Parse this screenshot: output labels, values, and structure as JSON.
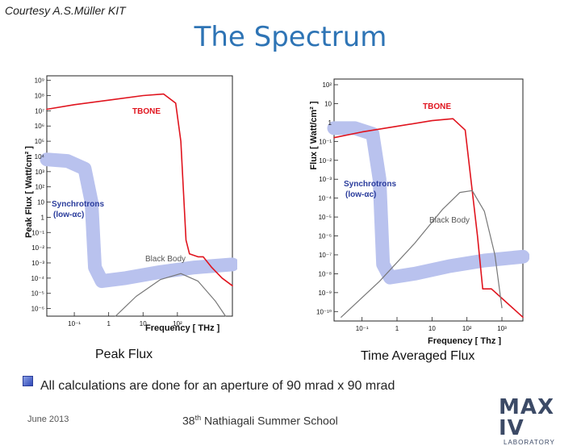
{
  "slide": {
    "credit": "Courtesy A.S.Müller KIT",
    "title": "The Spectrum",
    "bullet": "All calculations are done for an aperture of 90 mrad x 90 mrad",
    "date": "June 2013",
    "school_ordinal": "38",
    "school_suffix": "th",
    "school_name": " Nathiagali Summer School",
    "logo": "MAX IV",
    "logo_sub": "LABORATORY"
  },
  "colors": {
    "title": "#2e74b5",
    "tbone": "#e0141e",
    "synchrotron_band": "#b9c2ee",
    "black_body": "#777777"
  },
  "chart_data": [
    {
      "type": "line",
      "caption": "Peak Flux",
      "xlabel": "Frequency [ THz ]",
      "ylabel": "Peak Flux [ Watt/cm² ]",
      "xscale": "log",
      "yscale": "log",
      "xlim_exp": [
        -1.8,
        3.6
      ],
      "ylim_exp": [
        -6.5,
        9.3
      ],
      "x_ticks": [
        "10⁻¹",
        "1",
        "10",
        "10²"
      ],
      "x_tick_exp": [
        -1,
        0,
        1,
        2
      ],
      "y_ticks": [
        "10⁹",
        "10⁸",
        "10⁷",
        "10⁶",
        "10⁵",
        "10⁴",
        "10³",
        "10²",
        "10",
        "1",
        "10⁻¹",
        "10⁻²",
        "10⁻³",
        "10⁻⁴",
        "10⁻⁵",
        "10⁻⁶"
      ],
      "y_tick_exp": [
        9,
        8,
        7,
        6,
        5,
        4,
        3,
        2,
        1,
        0,
        -1,
        -2,
        -3,
        -4,
        -5,
        -6
      ],
      "annotations": [
        "TBONE",
        "Synchrotrons",
        "(low-αc)",
        "Black Body"
      ],
      "series": [
        {
          "name": "TBONE",
          "color": "#e0141e",
          "points": [
            [
              -1.8,
              7.1
            ],
            [
              -1,
              7.4
            ],
            [
              0,
              7.7
            ],
            [
              1,
              8.0
            ],
            [
              1.6,
              8.1
            ],
            [
              1.95,
              7.5
            ],
            [
              2.1,
              5.0
            ],
            [
              2.25,
              -1.5
            ],
            [
              2.35,
              -2.4
            ],
            [
              2.6,
              -2.6
            ],
            [
              2.75,
              -2.6
            ],
            [
              3.0,
              -3.3
            ],
            [
              3.3,
              -4.0
            ],
            [
              3.6,
              -4.5
            ]
          ]
        },
        {
          "name": "Synchrotrons (low-αc)",
          "color": "#b9c2ee",
          "points": [
            [
              -1.8,
              3.8
            ],
            [
              -1.2,
              3.7
            ],
            [
              -0.7,
              3.2
            ],
            [
              -0.5,
              1.0
            ],
            [
              -0.4,
              -3.3
            ],
            [
              -0.2,
              -4.2
            ],
            [
              0.5,
              -4.0
            ],
            [
              1.5,
              -3.6
            ],
            [
              2.5,
              -3.3
            ],
            [
              3.6,
              -3.1
            ]
          ]
        },
        {
          "name": "Black Body",
          "color": "#777777",
          "points": [
            [
              0.2,
              -6.5
            ],
            [
              0.8,
              -5.2
            ],
            [
              1.5,
              -4.1
            ],
            [
              2.1,
              -3.7
            ],
            [
              2.6,
              -4.2
            ],
            [
              3.1,
              -5.5
            ],
            [
              3.4,
              -6.5
            ]
          ]
        }
      ]
    },
    {
      "type": "line",
      "caption": "Time Averaged Flux",
      "xlabel": "Frequency [ Thz ]",
      "ylabel": "Flux [ Watt/cm² ]",
      "xscale": "log",
      "yscale": "log",
      "xlim_exp": [
        -1.8,
        3.6
      ],
      "ylim_exp": [
        -10.5,
        2.3
      ],
      "x_ticks": [
        "10⁻¹",
        "1",
        "10",
        "10²",
        "10³"
      ],
      "x_tick_exp": [
        -1,
        0,
        1,
        2,
        3
      ],
      "y_ticks": [
        "10²",
        "10",
        "1",
        "10⁻¹",
        "10⁻²",
        "10⁻³",
        "10⁻⁴",
        "10⁻⁵",
        "10⁻⁶",
        "10⁻⁷",
        "10⁻⁸",
        "10⁻⁹",
        "10⁻¹⁰"
      ],
      "y_tick_exp": [
        2,
        1,
        0,
        -1,
        -2,
        -3,
        -4,
        -5,
        -6,
        -7,
        -8,
        -9,
        -10
      ],
      "annotations": [
        "TBONE",
        "Synchrotrons",
        "(low-αc)",
        "Black Body"
      ],
      "series": [
        {
          "name": "TBONE",
          "color": "#e0141e",
          "points": [
            [
              -1.8,
              -0.8
            ],
            [
              -1,
              -0.5
            ],
            [
              0,
              -0.2
            ],
            [
              1,
              0.1
            ],
            [
              1.6,
              0.2
            ],
            [
              1.95,
              -0.4
            ],
            [
              2.1,
              -2.8
            ],
            [
              2.3,
              -6.0
            ],
            [
              2.45,
              -8.8
            ],
            [
              2.7,
              -8.8
            ],
            [
              3.0,
              -9.3
            ],
            [
              3.3,
              -9.8
            ],
            [
              3.6,
              -10.3
            ]
          ]
        },
        {
          "name": "Synchrotrons (low-αc)",
          "color": "#b9c2ee",
          "points": [
            [
              -1.8,
              -0.3
            ],
            [
              -1.2,
              -0.3
            ],
            [
              -0.7,
              -0.6
            ],
            [
              -0.5,
              -3.0
            ],
            [
              -0.4,
              -7.5
            ],
            [
              -0.2,
              -8.2
            ],
            [
              0.5,
              -8.0
            ],
            [
              1.5,
              -7.6
            ],
            [
              2.5,
              -7.3
            ],
            [
              3.6,
              -7.1
            ]
          ]
        },
        {
          "name": "Black Body",
          "color": "#777777",
          "points": [
            [
              -1.6,
              -10.3
            ],
            [
              -0.5,
              -8.4
            ],
            [
              0.5,
              -6.4
            ],
            [
              1.3,
              -4.6
            ],
            [
              1.8,
              -3.7
            ],
            [
              2.15,
              -3.6
            ],
            [
              2.5,
              -4.7
            ],
            [
              2.8,
              -7.0
            ],
            [
              3.0,
              -9.8
            ]
          ]
        }
      ]
    }
  ]
}
